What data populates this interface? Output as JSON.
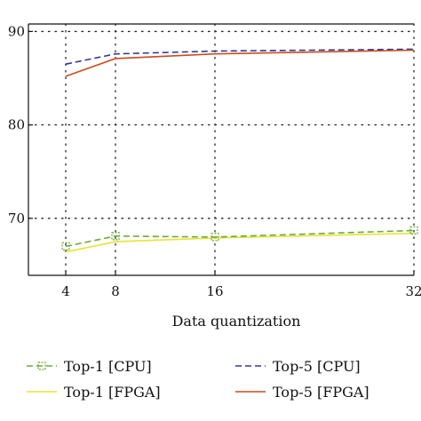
{
  "chart_data": {
    "type": "line",
    "title": "",
    "xlabel": "Data quantization",
    "ylabel": "",
    "x": [
      4,
      8,
      16,
      32
    ],
    "x_tick_labels": [
      "4",
      "8",
      "16",
      "32"
    ],
    "xlim": [
      1,
      32
    ],
    "y_tick_labels": [
      "90",
      "80",
      "70"
    ],
    "y_ticks": [
      90,
      80,
      70
    ],
    "ylim": [
      63.9,
      90.8
    ],
    "grid": true,
    "legend_placement": "bottom",
    "series": [
      {
        "name": "Top-1 [CPU]",
        "values": [
          67.0,
          68.1,
          68.0,
          68.7
        ],
        "color": "#6aaa3a",
        "style": "dashed",
        "marker": "square"
      },
      {
        "name": "Top-1 [FPGA]",
        "values": [
          66.4,
          67.5,
          67.9,
          68.4
        ],
        "color": "#e8e430",
        "style": "solid",
        "marker": "none"
      },
      {
        "name": "Top-5 [CPU]",
        "values": [
          86.5,
          87.6,
          87.9,
          88.1
        ],
        "color": "#2e3a8f",
        "style": "dashed",
        "marker": "none"
      },
      {
        "name": "Top-5 [FPGA]",
        "values": [
          85.2,
          87.1,
          87.6,
          88.0
        ],
        "color": "#cc4b1c",
        "style": "solid",
        "marker": "none"
      }
    ]
  }
}
